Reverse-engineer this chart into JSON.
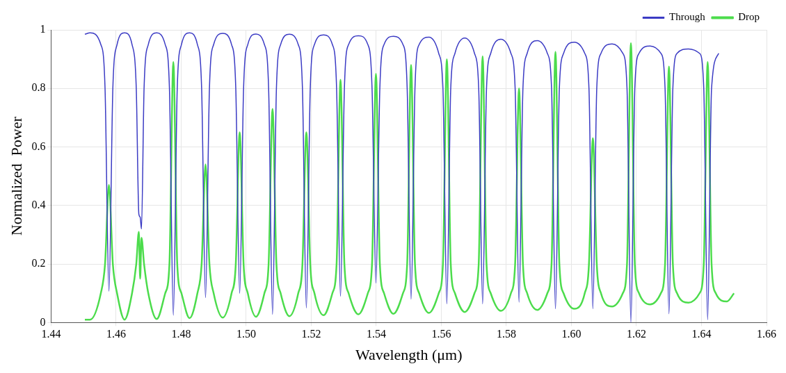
{
  "chart_data": {
    "type": "line",
    "xlabel": "Wavelength (μm)",
    "ylabel": "Normalized  Power",
    "xlim": [
      1.44,
      1.66
    ],
    "ylim": [
      0,
      1
    ],
    "xticks": [
      1.44,
      1.46,
      1.48,
      {
        "value": 1.5,
        "label": "1.50"
      },
      1.52,
      1.54,
      1.56,
      1.58,
      {
        "value": 1.6,
        "label": "1.60"
      },
      1.62,
      1.64,
      1.66
    ],
    "yticks": [
      0,
      0.2,
      0.4,
      0.6,
      0.8,
      1
    ],
    "grid": true,
    "legend": "top right",
    "marker": "none",
    "line_style": "solid",
    "series": [
      {
        "name": "Through",
        "color": "#3b3bc4",
        "x": [
          1.4504,
          1.452,
          1.4553,
          1.4566,
          1.4578,
          1.459,
          1.4603,
          1.4626,
          1.4649,
          1.4662,
          1.467,
          1.4674,
          1.4678,
          1.4686,
          1.4699,
          1.4725,
          1.4751,
          1.4764,
          1.4776,
          1.4788,
          1.4801,
          1.4826,
          1.485,
          1.4863,
          1.4875,
          1.4887,
          1.49,
          1.4928,
          1.4955,
          1.4968,
          1.498,
          1.4992,
          1.5005,
          1.503,
          1.5056,
          1.5069,
          1.5081,
          1.5093,
          1.5106,
          1.5133,
          1.516,
          1.5173,
          1.5185,
          1.5197,
          1.521,
          1.5238,
          1.5265,
          1.5278,
          1.529,
          1.5302,
          1.5315,
          1.5345,
          1.5374,
          1.5387,
          1.5399,
          1.5411,
          1.5424,
          1.5453,
          1.5482,
          1.5495,
          1.5507,
          1.5519,
          1.5532,
          1.5562,
          1.5592,
          1.5605,
          1.5617,
          1.5629,
          1.5642,
          1.5672,
          1.5702,
          1.5715,
          1.5727,
          1.5739,
          1.5752,
          1.5783,
          1.5814,
          1.5827,
          1.5839,
          1.5851,
          1.5864,
          1.5895,
          1.5926,
          1.5939,
          1.5951,
          1.5963,
          1.5976,
          1.6009,
          1.6041,
          1.6054,
          1.6066,
          1.6078,
          1.6091,
          1.6125,
          1.6158,
          1.6171,
          1.6183,
          1.6195,
          1.6208,
          1.6242,
          1.6275,
          1.6288,
          1.63,
          1.6312,
          1.6325,
          1.636,
          1.6394,
          1.6407,
          1.6419,
          1.6431,
          1.6453
        ],
        "values": [
          0.985,
          0.99,
          0.95,
          0.8,
          0.107,
          0.8,
          0.95,
          0.99,
          0.95,
          0.8,
          0.37,
          0.36,
          0.32,
          0.8,
          0.95,
          0.99,
          0.95,
          0.8,
          0.025,
          0.8,
          0.95,
          0.99,
          0.95,
          0.8,
          0.085,
          0.8,
          0.95,
          0.988,
          0.95,
          0.8,
          0.1,
          0.8,
          0.95,
          0.986,
          0.95,
          0.8,
          0.028,
          0.8,
          0.95,
          0.985,
          0.95,
          0.8,
          0.05,
          0.8,
          0.95,
          0.983,
          0.95,
          0.8,
          0.09,
          0.8,
          0.95,
          0.98,
          0.95,
          0.8,
          0.135,
          0.8,
          0.95,
          0.978,
          0.95,
          0.8,
          0.08,
          0.8,
          0.95,
          0.975,
          0.92,
          0.8,
          0.064,
          0.8,
          0.92,
          0.972,
          0.92,
          0.8,
          0.064,
          0.8,
          0.92,
          0.968,
          0.92,
          0.8,
          0.07,
          0.8,
          0.92,
          0.963,
          0.92,
          0.8,
          0.047,
          0.8,
          0.92,
          0.958,
          0.92,
          0.8,
          0.047,
          0.8,
          0.92,
          0.952,
          0.92,
          0.8,
          0,
          0.8,
          0.92,
          0.945,
          0.92,
          0.8,
          0.03,
          0.8,
          0.92,
          0.935,
          0.92,
          0.8,
          0.01,
          0.8,
          0.92
        ]
      },
      {
        "name": "Drop",
        "color": "#4cdc4c",
        "x": [
          1.4504,
          1.452,
          1.4553,
          1.4566,
          1.4578,
          1.459,
          1.4603,
          1.4626,
          1.4649,
          1.4662,
          1.467,
          1.4674,
          1.4678,
          1.4686,
          1.4699,
          1.4725,
          1.4751,
          1.4764,
          1.4776,
          1.4788,
          1.4801,
          1.4826,
          1.485,
          1.4863,
          1.4875,
          1.4887,
          1.49,
          1.4928,
          1.4955,
          1.4968,
          1.498,
          1.4992,
          1.5005,
          1.503,
          1.5056,
          1.5069,
          1.5081,
          1.5093,
          1.5106,
          1.5133,
          1.516,
          1.5173,
          1.5185,
          1.5197,
          1.521,
          1.5238,
          1.5265,
          1.5278,
          1.529,
          1.5302,
          1.5315,
          1.5345,
          1.5374,
          1.5387,
          1.5399,
          1.5411,
          1.5424,
          1.5453,
          1.5482,
          1.5495,
          1.5507,
          1.5519,
          1.5532,
          1.5562,
          1.5592,
          1.5605,
          1.5617,
          1.5629,
          1.5642,
          1.5672,
          1.5702,
          1.5715,
          1.5727,
          1.5739,
          1.5752,
          1.5783,
          1.5814,
          1.5827,
          1.5839,
          1.5851,
          1.5864,
          1.5895,
          1.5926,
          1.5939,
          1.5951,
          1.5963,
          1.5976,
          1.6009,
          1.6041,
          1.6054,
          1.6066,
          1.6078,
          1.6091,
          1.6125,
          1.6158,
          1.6171,
          1.6183,
          1.6195,
          1.6208,
          1.6242,
          1.6275,
          1.6288,
          1.63,
          1.6312,
          1.6325,
          1.636,
          1.6394,
          1.6407,
          1.6419,
          1.6431,
          1.6444,
          1.6478,
          1.65
        ],
        "values": [
          0.01,
          0.01,
          0.1,
          0.2,
          0.47,
          0.2,
          0.1,
          0.01,
          0.1,
          0.2,
          0.31,
          0.15,
          0.29,
          0.2,
          0.1,
          0.012,
          0.1,
          0.2,
          0.89,
          0.2,
          0.1,
          0.015,
          0.1,
          0.2,
          0.54,
          0.2,
          0.1,
          0.017,
          0.1,
          0.2,
          0.65,
          0.2,
          0.1,
          0.02,
          0.1,
          0.2,
          0.73,
          0.2,
          0.1,
          0.022,
          0.1,
          0.2,
          0.65,
          0.2,
          0.1,
          0.025,
          0.1,
          0.2,
          0.83,
          0.2,
          0.1,
          0.028,
          0.1,
          0.2,
          0.85,
          0.2,
          0.1,
          0.03,
          0.1,
          0.2,
          0.88,
          0.2,
          0.1,
          0.033,
          0.1,
          0.2,
          0.9,
          0.2,
          0.1,
          0.036,
          0.1,
          0.2,
          0.91,
          0.2,
          0.1,
          0.04,
          0.1,
          0.2,
          0.8,
          0.2,
          0.1,
          0.043,
          0.1,
          0.2,
          0.925,
          0.2,
          0.1,
          0.047,
          0.1,
          0.2,
          0.63,
          0.2,
          0.1,
          0.055,
          0.1,
          0.2,
          0.955,
          0.2,
          0.1,
          0.062,
          0.1,
          0.2,
          0.875,
          0.2,
          0.1,
          0.068,
          0.1,
          0.2,
          0.89,
          0.2,
          0.1,
          0.072,
          0.1
        ]
      }
    ]
  }
}
